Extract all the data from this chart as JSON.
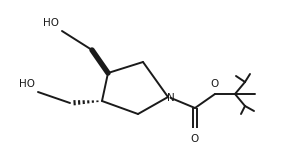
{
  "bg_color": "#ffffff",
  "line_color": "#1a1a1a",
  "line_width": 1.4,
  "fig_width": 2.86,
  "fig_height": 1.66,
  "dpi": 100,
  "xlim": [
    0,
    28.6
  ],
  "ylim": [
    0,
    16.6
  ]
}
